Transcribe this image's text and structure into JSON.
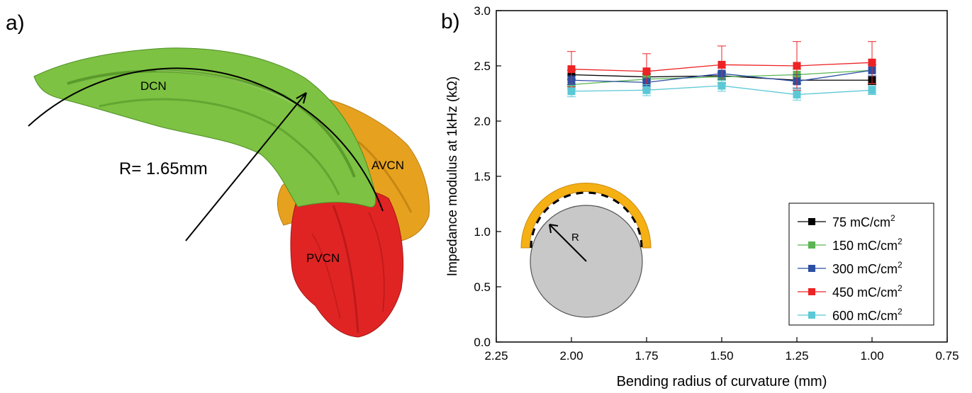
{
  "panel_a": {
    "label": "a)",
    "radius_label": "R= 1.65mm",
    "regions": [
      {
        "name": "DCN",
        "color": "#7dc242"
      },
      {
        "name": "AVCN",
        "color": "#e6a21f"
      },
      {
        "name": "PVCN",
        "color": "#e02424"
      }
    ]
  },
  "panel_b": {
    "label": "b)",
    "inset_label": "R",
    "inset_colors": {
      "rod": "#c8c8c8",
      "film": "#f5b014"
    }
  },
  "chart_data": {
    "type": "line",
    "xlabel": "Bending radius of curvature (mm)",
    "ylabel": "Impedance modulus at 1kHz (kΩ)",
    "xlim": [
      2.25,
      0.75
    ],
    "x_reversed": true,
    "ylim": [
      0.0,
      3.0
    ],
    "xticks": [
      "2.25",
      "2.00",
      "1.75",
      "1.50",
      "1.25",
      "1.00",
      "0.75"
    ],
    "yticks": [
      "0.0",
      "0.5",
      "1.0",
      "1.5",
      "2.0",
      "2.5",
      "3.0"
    ],
    "x": [
      2.0,
      1.75,
      1.5,
      1.25,
      1.0
    ],
    "grid": false,
    "legend_position": "bottom-right",
    "series": [
      {
        "name": "75 mC/cm",
        "sup": "2",
        "color": "#000000",
        "values": [
          2.42,
          2.4,
          2.41,
          2.37,
          2.37
        ],
        "err": [
          0.04,
          0.03,
          0.03,
          0.03,
          0.04
        ]
      },
      {
        "name": "150 mC/cm",
        "sup": "2",
        "color": "#5ab552",
        "values": [
          2.33,
          2.38,
          2.4,
          2.42,
          2.46
        ],
        "err": [
          0.04,
          0.04,
          0.05,
          0.05,
          0.05
        ]
      },
      {
        "name": "300 mC/cm",
        "sup": "2",
        "color": "#2c4fa3",
        "values": [
          2.37,
          2.35,
          2.43,
          2.36,
          2.46
        ],
        "err": [
          0.04,
          0.04,
          0.05,
          0.06,
          0.05
        ]
      },
      {
        "name": "450 mC/cm",
        "sup": "2",
        "color": "#ed2224",
        "values": [
          2.47,
          2.45,
          2.51,
          2.5,
          2.53
        ],
        "err": [
          0.16,
          0.16,
          0.17,
          0.22,
          0.19
        ]
      },
      {
        "name": "600 mC/cm",
        "sup": "2",
        "color": "#5bc8d6",
        "values": [
          2.27,
          2.28,
          2.32,
          2.24,
          2.28
        ],
        "err": [
          0.05,
          0.05,
          0.05,
          0.05,
          0.04
        ]
      }
    ]
  }
}
